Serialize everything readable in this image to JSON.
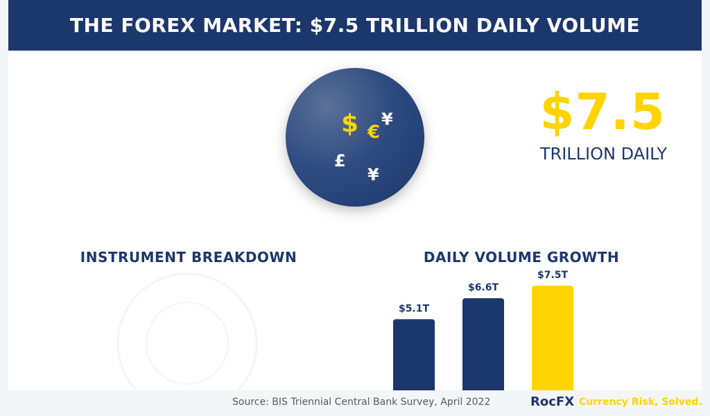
{
  "header": {
    "title": "THE FOREX MARKET: $7.5 TRILLION DAILY VOLUME"
  },
  "hero": {
    "symbols": [
      {
        "glyph": "$",
        "color": "#ffd400"
      },
      {
        "glyph": "€",
        "color": "#ffd400"
      },
      {
        "glyph": "¥",
        "color": "#ffffff"
      },
      {
        "glyph": "£",
        "color": "#ffffff"
      },
      {
        "glyph": "¥",
        "color": "#ffffff"
      }
    ],
    "value": "$7.5",
    "caption": "TRILLION DAILY"
  },
  "breakdown": {
    "title": "INSTRUMENT BREAKDOWN"
  },
  "growth": {
    "title": "DAILY VOLUME GROWTH"
  },
  "chart_data": {
    "type": "bar",
    "title": "DAILY VOLUME GROWTH",
    "categories": [],
    "values": [
      5.1,
      6.6,
      7.5
    ],
    "labels": [
      "$5.1T",
      "$6.6T",
      "$7.5T"
    ],
    "colors": [
      "#1c376c",
      "#1c376c",
      "#ffd400"
    ],
    "unit": "trillion USD",
    "ylim": [
      0,
      7.5
    ],
    "grid": false
  },
  "footer": {
    "source": "Source: BIS Triennial Central Bank Survey, April 2022",
    "brand": "RocFX",
    "tagline": "Currency Risk, Solved."
  },
  "colors": {
    "navy": "#1c376c",
    "gold": "#ffd400",
    "background": "#f4f5f8"
  }
}
